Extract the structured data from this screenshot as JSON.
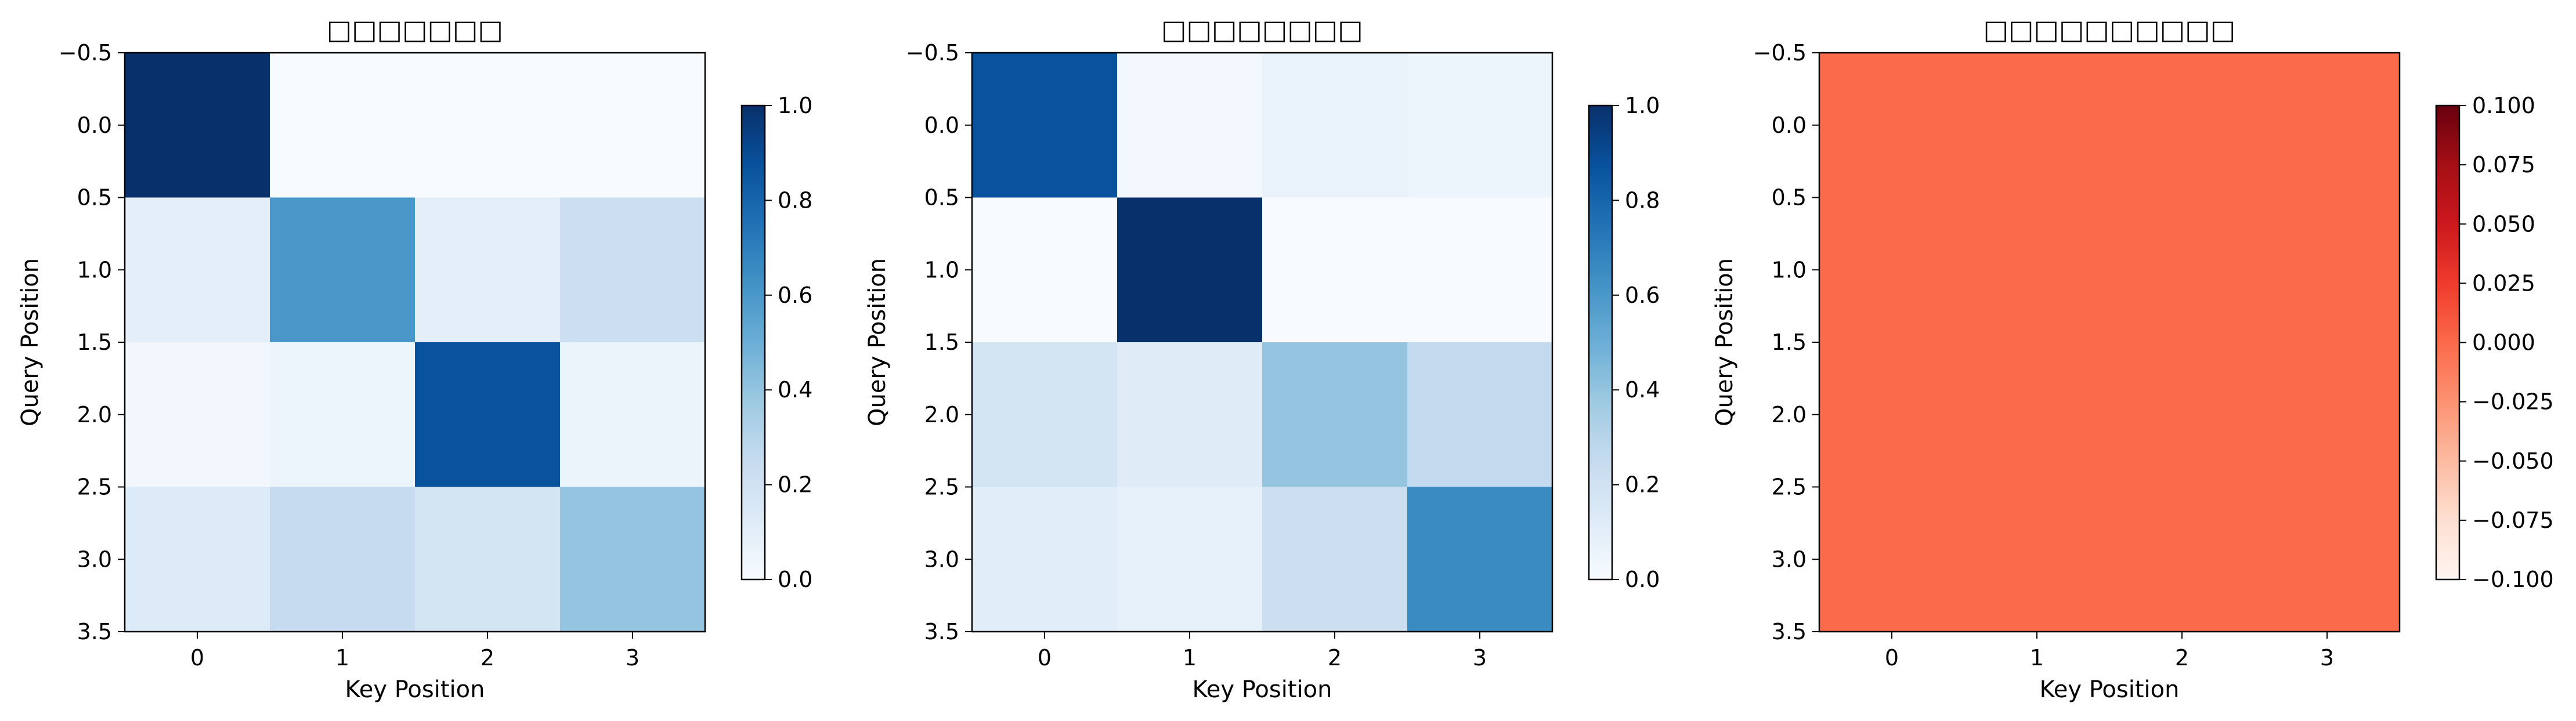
{
  "chart_data": [
    {
      "type": "heatmap",
      "title": "□□□□□□□",
      "xlabel": "Key Position",
      "ylabel": "Query Position",
      "x_ticks": [
        "0",
        "1",
        "2",
        "3"
      ],
      "y_ticks": [
        "−0.5",
        "0.0",
        "0.5",
        "1.0",
        "1.5",
        "2.0",
        "2.5",
        "3.0",
        "3.5"
      ],
      "xlim": [
        -0.5,
        3.5
      ],
      "ylim": [
        3.5,
        -0.5
      ],
      "colormap": "Blues",
      "vmin": 0.0,
      "vmax": 1.0,
      "colorbar_ticks": [
        "0.0",
        "0.2",
        "0.4",
        "0.6",
        "0.8",
        "1.0"
      ],
      "values": [
        [
          1.0,
          0.0,
          0.0,
          0.0
        ],
        [
          0.1,
          0.6,
          0.1,
          0.22
        ],
        [
          0.03,
          0.05,
          0.87,
          0.06
        ],
        [
          0.13,
          0.25,
          0.18,
          0.4
        ]
      ]
    },
    {
      "type": "heatmap",
      "title": "□□□□□□□□",
      "xlabel": "Key Position",
      "ylabel": "Query Position",
      "x_ticks": [
        "0",
        "1",
        "2",
        "3"
      ],
      "y_ticks": [
        "−0.5",
        "0.0",
        "0.5",
        "1.0",
        "1.5",
        "2.0",
        "2.5",
        "3.0",
        "3.5"
      ],
      "xlim": [
        -0.5,
        3.5
      ],
      "ylim": [
        3.5,
        -0.5
      ],
      "colormap": "Blues",
      "vmin": 0.0,
      "vmax": 1.0,
      "colorbar_ticks": [
        "0.0",
        "0.2",
        "0.4",
        "0.6",
        "0.8",
        "1.0"
      ],
      "values": [
        [
          0.87,
          0.02,
          0.07,
          0.05
        ],
        [
          0.0,
          1.0,
          0.0,
          0.0
        ],
        [
          0.18,
          0.12,
          0.4,
          0.26
        ],
        [
          0.11,
          0.08,
          0.22,
          0.65
        ]
      ]
    },
    {
      "type": "heatmap",
      "title": "□□□□□□□□□□",
      "xlabel": "Key Position",
      "ylabel": "Query Position",
      "x_ticks": [
        "0",
        "1",
        "2",
        "3"
      ],
      "y_ticks": [
        "−0.5",
        "0.0",
        "0.5",
        "1.0",
        "1.5",
        "2.0",
        "2.5",
        "3.0",
        "3.5"
      ],
      "xlim": [
        -0.5,
        3.5
      ],
      "ylim": [
        3.5,
        -0.5
      ],
      "colormap": "Reds",
      "vmin": -0.1,
      "vmax": 0.1,
      "colorbar_ticks": [
        "−0.100",
        "−0.075",
        "−0.050",
        "−0.025",
        "0.000",
        "0.025",
        "0.050",
        "0.075",
        "0.100"
      ],
      "values": [
        [
          0.0,
          0.0,
          0.0,
          0.0
        ],
        [
          0.0,
          0.0,
          0.0,
          0.0
        ],
        [
          0.0,
          0.0,
          0.0,
          0.0
        ],
        [
          0.0,
          0.0,
          0.0,
          0.0
        ]
      ]
    }
  ]
}
